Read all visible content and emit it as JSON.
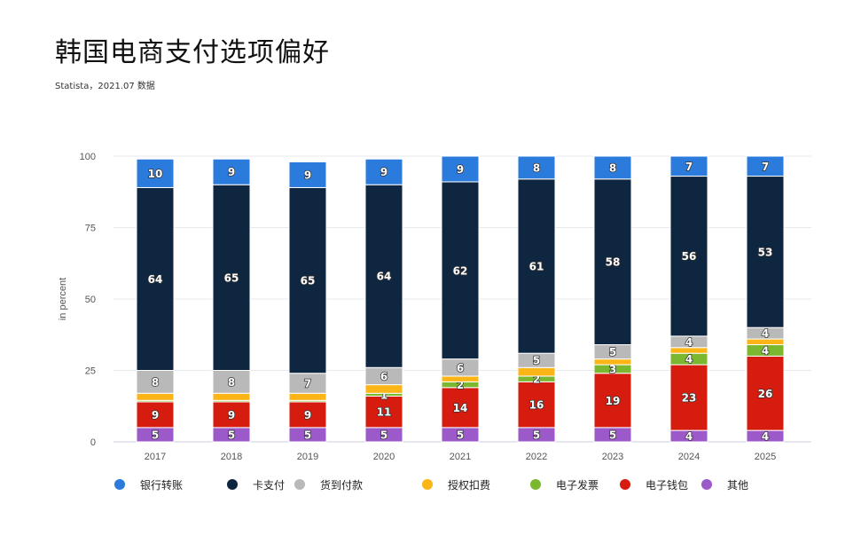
{
  "title": "韩国电商支付选项偏好",
  "subtitle": "Statista，2021.07 数据",
  "chart_data": {
    "type": "bar",
    "stacked": true,
    "title": "韩国电商支付选项偏好",
    "xlabel": "",
    "ylabel": "in percent",
    "ylim": [
      0,
      100
    ],
    "yticks": [
      0,
      25,
      50,
      75,
      100
    ],
    "grid": true,
    "legend": "bottom",
    "categories": [
      "2017",
      "2018",
      "2019",
      "2020",
      "2021",
      "2022",
      "2023",
      "2024",
      "2025"
    ],
    "series": [
      {
        "name": "其他",
        "color": "#9b59c9",
        "values": [
          5,
          5,
          5,
          5,
          5,
          5,
          5,
          4,
          4
        ]
      },
      {
        "name": "电子钱包",
        "color": "#d61c0f",
        "values": [
          9,
          9,
          9,
          11,
          14,
          16,
          19,
          23,
          26
        ]
      },
      {
        "name": "电子发票",
        "color": "#7cb82f",
        "values": [
          0.5,
          0.5,
          0.5,
          1,
          2,
          2,
          3,
          4,
          4
        ]
      },
      {
        "name": "授权扣费",
        "color": "#fbb516",
        "values": [
          2.5,
          2.5,
          2.5,
          3,
          2,
          3,
          2,
          2,
          2
        ]
      },
      {
        "name": "货到付款",
        "color": "#b9b9b9",
        "values": [
          8,
          8,
          7,
          6,
          6,
          5,
          5,
          4,
          4
        ]
      },
      {
        "name": "卡支付",
        "color": "#0f2640",
        "values": [
          64,
          65,
          65,
          64,
          62,
          61,
          58,
          56,
          53
        ]
      },
      {
        "name": "银行转账",
        "color": "#2b7bdc",
        "values": [
          10,
          9,
          9,
          9,
          9,
          8,
          8,
          7,
          7
        ]
      }
    ],
    "legend_order": [
      "银行转账",
      "卡支付",
      "货到付款",
      "授权扣费",
      "电子发票",
      "电子钱包",
      "其他"
    ]
  }
}
